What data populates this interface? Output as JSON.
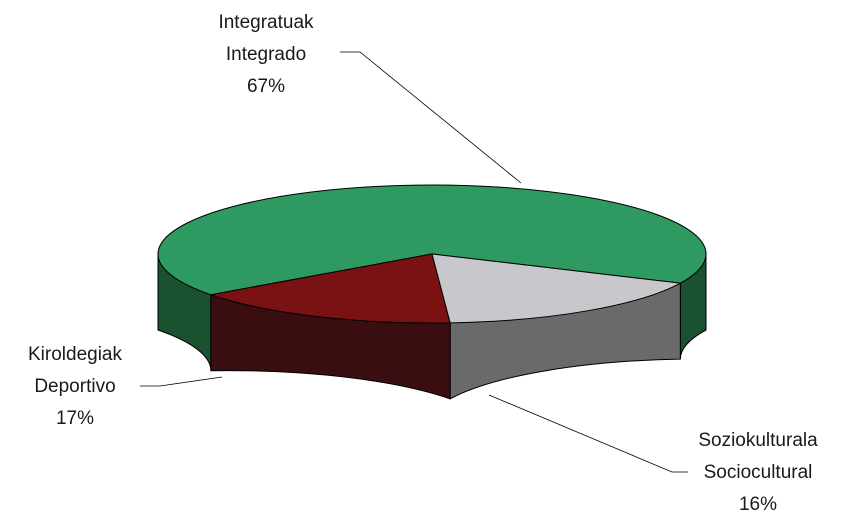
{
  "chart_data": {
    "type": "pie",
    "title": "",
    "slices": [
      {
        "lines": [
          "Integratuak",
          "Integrado"
        ],
        "percent_label": "67%",
        "value": 67,
        "color": "#2e9a62",
        "side_color": "#1a5230"
      },
      {
        "lines": [
          "Soziokulturala",
          "Sociocultural"
        ],
        "percent_label": "16%",
        "value": 16,
        "color": "#7a1214",
        "side_color": "#3a0d10"
      },
      {
        "lines": [
          "Kiroldegiak",
          "Deportivo"
        ],
        "percent_label": "17%",
        "value": 17,
        "color": "#c8c8cc",
        "side_color": "#6a6a6a"
      }
    ],
    "style": "3d",
    "data_labels": "outside-with-leader-lines",
    "legend": "none"
  }
}
